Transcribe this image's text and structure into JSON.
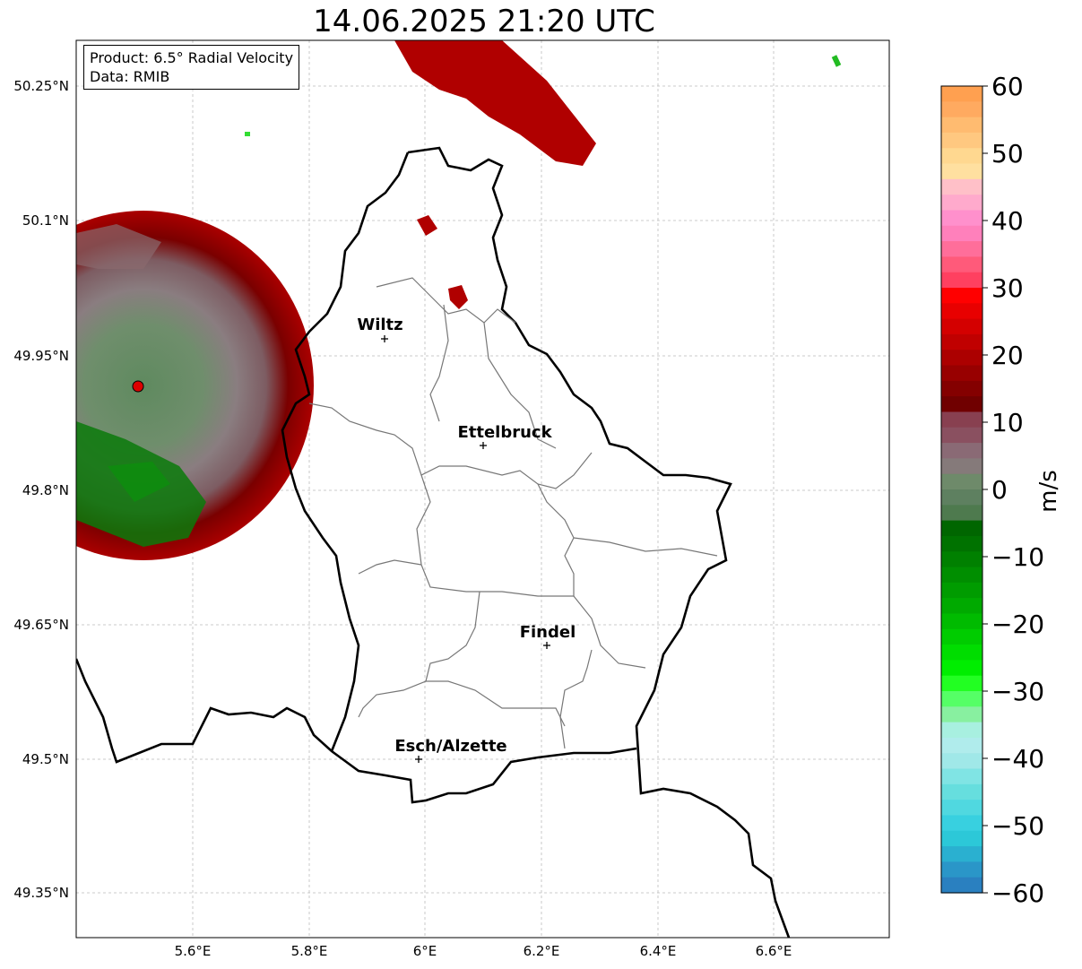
{
  "title": "14.06.2025 21:20 UTC",
  "info_box": {
    "product": "Product: 6.5° Radial Velocity",
    "data": "Data: RMIB"
  },
  "axes": {
    "lon_ticks": [
      "5.6°E",
      "5.8°E",
      "6°E",
      "6.2°E",
      "6.4°E",
      "6.6°E"
    ],
    "lat_ticks": [
      "50.25°N",
      "50.1°N",
      "49.95°N",
      "49.8°N",
      "49.65°N",
      "49.5°N",
      "49.35°N"
    ]
  },
  "cities": [
    {
      "name": "Wiltz"
    },
    {
      "name": "Ettelbruck"
    },
    {
      "name": "Findel"
    },
    {
      "name": "Esch/Alzette"
    }
  ],
  "colorbar": {
    "unit": "m/s",
    "ticks": [
      "60",
      "50",
      "40",
      "30",
      "20",
      "10",
      "0",
      "−10",
      "−20",
      "−30",
      "−40",
      "−50",
      "−60"
    ],
    "range": [
      -60,
      60
    ]
  }
}
